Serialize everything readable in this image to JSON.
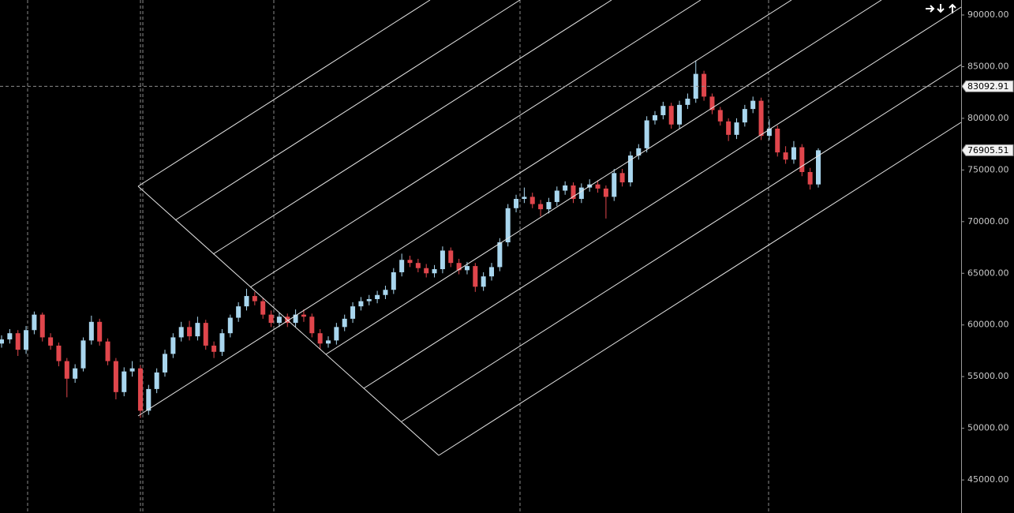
{
  "chart_data": {
    "type": "candlestick",
    "ylim": [
      41800,
      91450
    ],
    "yticks": [
      {
        "value": 45000,
        "label": "45000.00"
      },
      {
        "value": 50000,
        "label": "50000.00"
      },
      {
        "value": 55000,
        "label": "55000.00"
      },
      {
        "value": 60000,
        "label": "60000.00"
      },
      {
        "value": 65000,
        "label": "65000.00"
      },
      {
        "value": 70000,
        "label": "70000.00"
      },
      {
        "value": 75000,
        "label": "75000.00"
      },
      {
        "value": 80000,
        "label": "80000.00"
      },
      {
        "value": 85000,
        "label": "85000.00"
      },
      {
        "value": 90000,
        "label": "90000.00"
      }
    ],
    "up_color": "#a9d6ee",
    "down_color": "#e0464c",
    "last_price": 76905.51,
    "crosshair_price": 83092.91,
    "open": [
      58200,
      58600,
      59200,
      57600,
      59500,
      61000,
      58800,
      58000,
      56500,
      54800,
      55800,
      58500,
      60300,
      58400,
      56500,
      53500,
      55500,
      55800,
      51700,
      53800,
      55400,
      57200,
      58800,
      59800,
      58900,
      60200,
      58000,
      57400,
      59200,
      60700,
      61800,
      62800,
      62300,
      61000,
      60200,
      60800,
      60200,
      61000,
      60800,
      59200,
      58200,
      58500,
      59800,
      60600,
      61800,
      62300,
      62500,
      62900,
      63400,
      65100,
      66300,
      66000,
      65500,
      65000,
      65400,
      67200,
      66000,
      65300,
      65700,
      63700,
      64700,
      65600,
      68000,
      71300,
      72200,
      72400,
      71700,
      71200,
      71900,
      73000,
      73500,
      72200,
      73300,
      73600,
      73200,
      72400,
      74700,
      73800,
      76400,
      77100,
      79800,
      80300,
      81200,
      79400,
      81300,
      81900,
      84300,
      82100,
      80800,
      79700,
      78400,
      79600,
      80900,
      81700,
      78300,
      79000,
      76700,
      76000,
      77200,
      74800,
      73600
    ],
    "high": [
      59000,
      59600,
      59500,
      59900,
      61300,
      61200,
      59200,
      58300,
      56800,
      56200,
      58800,
      60900,
      60600,
      58700,
      56800,
      55900,
      56500,
      56100,
      54200,
      55800,
      57600,
      59200,
      60300,
      60400,
      60800,
      60500,
      58400,
      59600,
      61000,
      62200,
      63500,
      63200,
      62600,
      61400,
      61200,
      61100,
      61500,
      61500,
      61100,
      59600,
      58900,
      60200,
      61000,
      62200,
      62700,
      62900,
      63300,
      63800,
      65500,
      66900,
      66700,
      66400,
      65900,
      65800,
      67600,
      67500,
      66400,
      66100,
      66000,
      65100,
      66000,
      68400,
      71700,
      72600,
      73300,
      72800,
      72100,
      72300,
      73400,
      73900,
      73800,
      73700,
      74100,
      74000,
      73500,
      75100,
      75100,
      76800,
      77500,
      80200,
      80700,
      81600,
      81500,
      81700,
      82400,
      85600,
      84600,
      82400,
      81100,
      80000,
      80000,
      81300,
      82100,
      82000,
      79900,
      79300,
      77300,
      77800,
      77500,
      75200,
      77100
    ],
    "low": [
      57800,
      58200,
      57000,
      57200,
      59100,
      58400,
      57600,
      56000,
      53000,
      54400,
      55500,
      58100,
      58000,
      56100,
      52800,
      53100,
      55000,
      51000,
      51300,
      53400,
      55000,
      56800,
      58400,
      58500,
      58500,
      57600,
      56800,
      57000,
      58800,
      60300,
      61400,
      61900,
      60600,
      59800,
      59800,
      59800,
      59800,
      60300,
      58800,
      57600,
      57800,
      58100,
      59400,
      60200,
      61400,
      61900,
      62100,
      62500,
      63000,
      64700,
      65600,
      65100,
      64600,
      64600,
      65000,
      65600,
      64900,
      64900,
      63200,
      63300,
      64300,
      65200,
      67600,
      70900,
      71800,
      71300,
      70500,
      70800,
      71500,
      72600,
      71800,
      71800,
      72900,
      72800,
      70300,
      72000,
      73400,
      73400,
      76000,
      76700,
      79400,
      79900,
      79000,
      79000,
      80900,
      81500,
      81700,
      80400,
      79300,
      77800,
      78000,
      79200,
      80500,
      77900,
      77900,
      76300,
      75600,
      75600,
      74400,
      73100,
      73300
    ],
    "close": [
      58600,
      59200,
      57600,
      59500,
      61000,
      58800,
      58000,
      56500,
      54800,
      55800,
      58500,
      60300,
      58400,
      56500,
      53500,
      55500,
      55800,
      51700,
      53800,
      55400,
      57200,
      58800,
      59800,
      58900,
      60200,
      58000,
      57400,
      59200,
      60700,
      61800,
      62800,
      62300,
      61000,
      60200,
      60800,
      60200,
      61000,
      60800,
      59200,
      58200,
      58500,
      59800,
      60600,
      61800,
      62300,
      62500,
      62900,
      63400,
      65100,
      66300,
      66000,
      65500,
      65000,
      65400,
      67200,
      66000,
      65300,
      65700,
      63700,
      64700,
      65600,
      68000,
      71300,
      72200,
      72400,
      71700,
      71200,
      71900,
      73000,
      73500,
      72200,
      73300,
      73600,
      73200,
      72400,
      74700,
      73800,
      76400,
      77100,
      79800,
      80300,
      81200,
      79400,
      81300,
      81900,
      84300,
      82100,
      80800,
      79700,
      78400,
      79600,
      80900,
      81700,
      78300,
      79000,
      76700,
      76000,
      77200,
      74800,
      73600,
      76905.51
    ]
  }
}
